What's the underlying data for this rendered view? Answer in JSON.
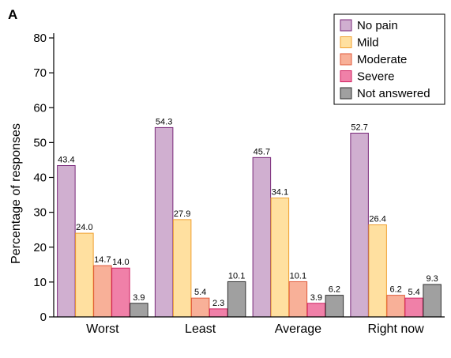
{
  "panel_label": "A",
  "chart_data": {
    "type": "bar",
    "title": "",
    "xlabel": "",
    "ylabel": "Percentage of responses",
    "ylim": [
      0,
      80
    ],
    "yticks": [
      "0",
      "10",
      "20",
      "30",
      "40",
      "50",
      "60",
      "70",
      "80"
    ],
    "categories": [
      "Worst",
      "Least",
      "Average",
      "Right now"
    ],
    "series": [
      {
        "name": "No pain",
        "fill": "#d0afd0",
        "stroke": "#7a2a7a",
        "values": [
          43.4,
          54.3,
          45.7,
          52.7
        ],
        "labels": [
          "43.4",
          "54.3",
          "45.7",
          "52.7"
        ]
      },
      {
        "name": "Mild",
        "fill": "#ffe0a0",
        "stroke": "#f0a030",
        "values": [
          24.0,
          27.9,
          34.1,
          26.4
        ],
        "labels": [
          "24.0",
          "27.9",
          "34.1",
          "26.4"
        ]
      },
      {
        "name": "Moderate",
        "fill": "#f8b098",
        "stroke": "#e05a3a",
        "values": [
          14.7,
          5.4,
          10.1,
          6.2
        ],
        "labels": [
          "14.7",
          "5.4",
          "10.1",
          "6.2"
        ]
      },
      {
        "name": "Severe",
        "fill": "#f080a8",
        "stroke": "#d02060",
        "values": [
          14.0,
          2.3,
          3.9,
          5.4
        ],
        "labels": [
          "14.0",
          "2.3",
          "3.9",
          "5.4"
        ]
      },
      {
        "name": "Not answered",
        "fill": "#a0a0a0",
        "stroke": "#303030",
        "values": [
          3.9,
          10.1,
          6.2,
          9.3
        ],
        "labels": [
          "3.9",
          "10.1",
          "6.2",
          "9.3"
        ]
      }
    ],
    "legend": "top-right",
    "grid": false
  }
}
